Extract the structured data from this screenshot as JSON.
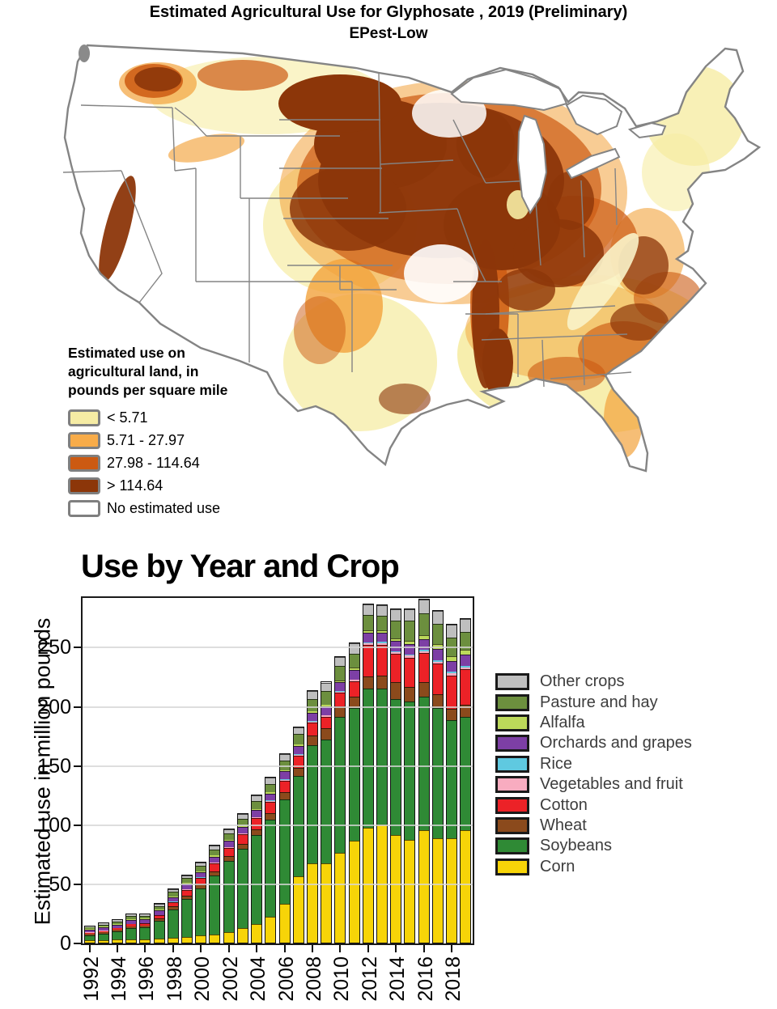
{
  "map": {
    "title": "Estimated Agricultural Use for Glyphosate , 2019 (Preliminary)",
    "subtitle": "EPest-Low",
    "legend": {
      "title_lines": [
        "Estimated use on",
        "agricultural land, in",
        "pounds per square mile"
      ],
      "items": [
        {
          "label": "< 5.71",
          "color": "#F6ECA4"
        },
        {
          "label": "5.71 - 27.97",
          "color": "#F8AC49"
        },
        {
          "label": "27.98 - 114.64",
          "color": "#CC5A12"
        },
        {
          "label": "> 114.64",
          "color": "#8C3609"
        },
        {
          "label": "No estimated use",
          "color": "#FFFFFF"
        }
      ]
    }
  },
  "chart_data": {
    "type": "bar",
    "stacked": true,
    "title": "Use by Year and Crop",
    "ylabel": "Estimated use in million pounds",
    "xlabel": "",
    "ylim": [
      0,
      292
    ],
    "yticks": [
      0,
      50,
      100,
      150,
      200,
      250
    ],
    "grid": true,
    "legend_position": "right",
    "x": [
      1992,
      1993,
      1994,
      1995,
      1996,
      1997,
      1998,
      1999,
      2000,
      2001,
      2002,
      2003,
      2004,
      2005,
      2006,
      2007,
      2008,
      2009,
      2010,
      2011,
      2012,
      2013,
      2014,
      2015,
      2016,
      2017,
      2018,
      2019
    ],
    "x_tick_labels": [
      "1992",
      "1994",
      "1996",
      "1998",
      "2000",
      "2002",
      "2004",
      "2006",
      "2008",
      "2010",
      "2012",
      "2014",
      "2016",
      "2018"
    ],
    "series_bottom_to_top_note": "stack order bottom to top; legend shown reversed (top to bottom)",
    "series": [
      {
        "name": "Corn",
        "color": "#F7D408",
        "values": [
          2,
          2.2,
          2.5,
          3,
          3,
          3.5,
          4,
          5,
          6,
          7,
          9,
          12,
          16,
          22,
          33,
          56,
          67,
          67,
          76,
          86,
          97,
          100,
          91,
          87,
          95,
          88,
          88,
          95
        ]
      },
      {
        "name": "Soybeans",
        "color": "#2F8A35",
        "values": [
          4.5,
          5.5,
          7,
          9.5,
          10,
          15,
          24,
          32,
          40,
          50,
          60,
          67,
          75,
          82,
          88,
          85,
          100,
          105,
          115,
          112,
          118,
          115,
          115,
          117,
          113,
          110,
          100,
          96
        ]
      },
      {
        "name": "Wheat",
        "color": "#8B4A1C",
        "values": [
          1,
          1.2,
          1.3,
          1.5,
          1.5,
          2,
          2.5,
          3,
          3,
          3.5,
          4,
          4.5,
          5,
          5.5,
          6,
          7,
          8,
          9,
          9,
          10,
          10,
          11,
          14,
          12,
          12,
          12,
          10,
          10
        ]
      },
      {
        "name": "Cotton",
        "color": "#EC2227",
        "values": [
          0.8,
          1,
          1.2,
          1.5,
          1.7,
          2.5,
          3.5,
          4.5,
          5.5,
          6.5,
          7,
          8,
          9,
          9.5,
          10,
          10,
          11,
          10,
          11,
          13,
          27,
          26,
          24,
          25,
          25,
          26,
          28,
          30
        ]
      },
      {
        "name": "Vegetables and fruit",
        "color": "#F8ACC0",
        "values": [
          0.3,
          0.3,
          0.3,
          0.3,
          0.3,
          0.4,
          0.4,
          0.5,
          0.5,
          0.5,
          0.6,
          0.6,
          0.7,
          0.7,
          0.8,
          0.8,
          0.9,
          0.9,
          1,
          1,
          1.2,
          1.3,
          1.5,
          1.5,
          1.5,
          1.5,
          1.5,
          1.5
        ]
      },
      {
        "name": "Rice",
        "color": "#5FC9E0",
        "values": [
          0.1,
          0.1,
          0.1,
          0.1,
          0.1,
          0.1,
          0.2,
          0.2,
          0.2,
          0.3,
          0.3,
          0.3,
          0.4,
          0.4,
          0.4,
          0.5,
          0.5,
          0.5,
          0.5,
          0.6,
          0.7,
          0.8,
          1,
          1,
          1.2,
          1.2,
          1.3,
          1.3
        ]
      },
      {
        "name": "Orchards and grapes",
        "color": "#7D3FA5",
        "values": [
          2.5,
          2.8,
          3,
          3.5,
          3.3,
          4,
          4,
          4.5,
          4.5,
          5,
          5,
          5.5,
          6,
          6,
          6.5,
          7,
          7,
          7.5,
          7.5,
          8,
          8,
          8,
          8.5,
          9,
          9,
          9.5,
          9,
          9.5
        ]
      },
      {
        "name": "Alfalfa",
        "color": "#BCD95A",
        "values": [
          0.4,
          0.4,
          0.5,
          0.5,
          0.5,
          0.6,
          0.7,
          0.8,
          0.8,
          0.9,
          1,
          1,
          1.1,
          1.2,
          1.3,
          1.4,
          1.5,
          1.5,
          1.6,
          1.7,
          1.8,
          2,
          2,
          2.5,
          3,
          4,
          4,
          4.5
        ]
      },
      {
        "name": "Pasture and hay",
        "color": "#6C8F3E",
        "values": [
          1.5,
          1.8,
          2,
          2.5,
          2.3,
          3,
          3.5,
          4,
          4.5,
          5,
          5.5,
          6,
          6.5,
          7,
          8,
          8.5,
          10,
          11,
          12,
          12,
          13,
          12,
          15,
          17,
          18.5,
          17,
          16,
          15
        ]
      },
      {
        "name": "Other crops",
        "color": "#BFBFBF",
        "values": [
          0.9,
          1,
          1.2,
          1.5,
          1.3,
          1.9,
          2.2,
          2.5,
          3,
          3.3,
          3.6,
          4,
          4.5,
          5,
          5.5,
          6,
          7,
          7.5,
          8,
          8.5,
          9,
          9,
          10,
          10,
          11.5,
          11,
          11,
          11
        ]
      }
    ]
  }
}
